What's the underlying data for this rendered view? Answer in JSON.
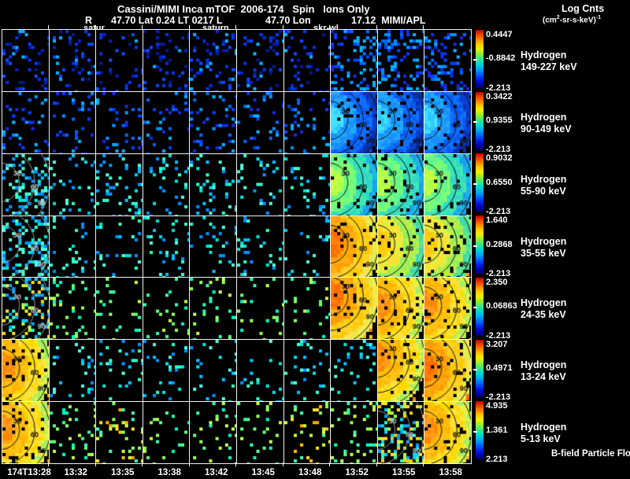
{
  "header": {
    "title": "Cassini/MIMI Inca mTOF  2006-174   Spin   Ions Only",
    "info_r": "R",
    "info_mid": "47.70 Lat 0.24 LT 0217 L",
    "info_lon": "47.70 Lon",
    "info_right": "17.12  MIMI/APL",
    "legend_line1": "Log Cnts",
    "units_parts": [
      "(cm",
      "2",
      "-sr-s-keV)",
      "-1"
    ],
    "markers": [
      "satur",
      "saturn",
      "skr-wl"
    ]
  },
  "rows": [
    {
      "species": "Hydrogen",
      "energy": "149-227 keV",
      "cbar_top": "0.4447",
      "cbar_mid": "-0.8842",
      "cbar_bot": "-2.213"
    },
    {
      "species": "Hydrogen",
      "energy": "90-149 keV",
      "cbar_top": "0.3422",
      "cbar_mid": "0.9355",
      "cbar_bot": "-2.213"
    },
    {
      "species": "Hydrogen",
      "energy": "55-90 keV",
      "cbar_top": "0.9032",
      "cbar_mid": "0.6550",
      "cbar_bot": "-2.213"
    },
    {
      "species": "Hydrogen",
      "energy": "35-55 keV",
      "cbar_top": "1.640",
      "cbar_mid": "0.2868",
      "cbar_bot": "-2.213"
    },
    {
      "species": "Hydrogen",
      "energy": "24-35 keV",
      "cbar_top": "2.350",
      "cbar_mid": "0.06863",
      "cbar_bot": "-2.213"
    },
    {
      "species": "Hydrogen",
      "energy": "13-24 keV",
      "cbar_top": "3.207",
      "cbar_mid": "0.4971",
      "cbar_bot": "-2.213"
    },
    {
      "species": "Hydrogen",
      "energy": "5-13 keV",
      "cbar_top": "4.935",
      "cbar_mid": "1.361",
      "cbar_bot": "2.213"
    }
  ],
  "footer": {
    "bfield": "B-field Particle Flow"
  },
  "time_axis": [
    "174T13:28",
    "13:32",
    "13:35",
    "13:38",
    "13:42",
    "13:45",
    "13:48",
    "13:52",
    "13:55",
    "13:58"
  ],
  "chart_data": {
    "type": "heatmap",
    "title": "Cassini/MIMI Inca mTOF 2006-174 Spin Ions Only",
    "units": "Log Cnts (cm2-sr-s-keV)-1",
    "x_ticks": [
      "174T13:28",
      "13:32",
      "13:35",
      "13:38",
      "13:42",
      "13:45",
      "13:48",
      "13:52",
      "13:55",
      "13:58"
    ],
    "channels": [
      {
        "name": "Hydrogen 149-227 keV",
        "scale_ticks": [
          "0.4447",
          "-0.8842",
          "-2.213"
        ]
      },
      {
        "name": "Hydrogen 90-149 keV",
        "scale_ticks": [
          "0.3422",
          "0.9355",
          "-2.213"
        ]
      },
      {
        "name": "Hydrogen 55-90 keV",
        "scale_ticks": [
          "0.9032",
          "0.6550",
          "-2.213"
        ]
      },
      {
        "name": "Hydrogen 35-55 keV",
        "scale_ticks": [
          "1.640",
          "0.2868",
          "-2.213"
        ]
      },
      {
        "name": "Hydrogen 24-35 keV",
        "scale_ticks": [
          "2.350",
          "0.06863",
          "-2.213"
        ]
      },
      {
        "name": "Hydrogen 13-24 keV",
        "scale_ticks": [
          "3.207",
          "0.4971",
          "-2.213"
        ]
      },
      {
        "name": "Hydrogen 5-13 keV",
        "scale_ticks": [
          "4.935",
          "1.361",
          "2.213"
        ]
      }
    ],
    "contour_labels": [
      "30",
      "60",
      "90"
    ],
    "palettes": {
      "deepblue": [
        "#0020c0",
        "#0038f0",
        "#1048ff",
        "#001a88",
        "#0030e0",
        "#00b0ff"
      ],
      "blue": [
        "#0040ff",
        "#0066ff",
        "#0090ff",
        "#00b0ff",
        "#1828e0"
      ],
      "cyan": [
        "#00c0ff",
        "#00e0d8",
        "#30ffc8",
        "#0090ff",
        "#50ffe0"
      ],
      "green": [
        "#30ffa8",
        "#60ff78",
        "#90ff58",
        "#00ffc0",
        "#c0ff48"
      ],
      "warmgreen": [
        "#ffe020",
        "#ffc400",
        "#d0ff38",
        "#88ff68",
        "#40ffb8",
        "#ffa800"
      ],
      "warm": [
        "#ffd800",
        "#ffbc00",
        "#ff9c00",
        "#ffe84c",
        "#ff8400"
      ],
      "hot": [
        "#ff9000",
        "#ff7400",
        "#ffac00",
        "#ffc800",
        "#ff6000"
      ],
      "mix": [
        "#00d0ff",
        "#30ffc0",
        "#ffe030",
        "#b0ff40",
        "#00a0ff",
        "#ffd000"
      ]
    },
    "blob_rings": {
      "warm": [
        [
          "#ff8800",
          "#ff9d20"
        ],
        [
          "#ffb400",
          "#ffc416"
        ],
        [
          "#ffd800",
          "#ffe23c"
        ],
        [
          "#e8f040",
          "#a8f060"
        ]
      ],
      "hot": [
        [
          "#ff6c00",
          "#ff8200"
        ],
        [
          "#ff9c00",
          "#ffae10"
        ],
        [
          "#ffc800",
          "#ffd22a"
        ],
        [
          "#ffe44c",
          "#d8f050"
        ]
      ],
      "warmgreen": [
        [
          "#ffd000",
          "#ffc020"
        ],
        [
          "#ffe030",
          "#e0f040"
        ],
        [
          "#b8f048",
          "#90f060"
        ],
        [
          "#58e890",
          "#40d8b0"
        ]
      ],
      "greenish": [
        [
          "#c8ff40",
          "#a8ff50"
        ],
        [
          "#80ff70",
          "#60f890"
        ],
        [
          "#40e8b0",
          "#30d8c8"
        ],
        [
          "#20b8e0",
          "#18a0f0"
        ]
      ],
      "cool": [
        [
          "#40e0ff",
          "#30c8ff"
        ],
        [
          "#20a8ff",
          "#1890ff"
        ],
        [
          "#1070ff",
          "#0858f0"
        ],
        [
          "#0840d0",
          "#0830a8"
        ]
      ]
    },
    "panels": [
      [
        {
          "d": 0.16,
          "p": "deepblue"
        },
        {
          "d": 0.13,
          "p": "deepblue"
        },
        {
          "d": 0.13,
          "p": "deepblue"
        },
        {
          "d": 0.16,
          "p": "deepblue"
        },
        {
          "d": 0.2,
          "p": "deepblue"
        },
        {
          "d": 0.14,
          "p": "deepblue"
        },
        {
          "d": 0.11,
          "p": "deepblue"
        },
        {
          "d": 0.28,
          "p": "blue"
        },
        {
          "d": 0.3,
          "p": "blue"
        },
        {
          "d": 0.24,
          "p": "blue"
        }
      ],
      [
        {
          "d": 0.13,
          "p": "blue"
        },
        {
          "d": 0.09,
          "p": "blue"
        },
        {
          "d": 0.11,
          "p": "blue"
        },
        {
          "d": 0.11,
          "p": "blue"
        },
        {
          "d": 0.16,
          "p": "blue"
        },
        {
          "d": 0.11,
          "p": "blue"
        },
        {
          "d": 0.1,
          "p": "blue"
        },
        {
          "d": 0.6,
          "p": "blue",
          "b": "cool"
        },
        {
          "d": 0.65,
          "p": "cyan",
          "b": "cool"
        },
        {
          "d": 0.55,
          "p": "blue",
          "b": "cool"
        }
      ],
      [
        {
          "d": 0.22,
          "p": "cyan",
          "a": 1
        },
        {
          "d": 0.11,
          "p": "cyan"
        },
        {
          "d": 0.13,
          "p": "cyan"
        },
        {
          "d": 0.11,
          "p": "cyan"
        },
        {
          "d": 0.11,
          "p": "cyan"
        },
        {
          "d": 0.13,
          "p": "cyan"
        },
        {
          "d": 0.11,
          "p": "cyan"
        },
        {
          "d": 0.85,
          "p": "green",
          "b": "greenish"
        },
        {
          "d": 0.88,
          "p": "green",
          "b": "greenish"
        },
        {
          "d": 0.85,
          "p": "green",
          "b": "greenish"
        }
      ],
      [
        {
          "d": 0.3,
          "p": "cyan",
          "a": 1
        },
        {
          "d": 0.09,
          "p": "cyan"
        },
        {
          "d": 0.07,
          "p": "cyan"
        },
        {
          "d": 0.09,
          "p": "cyan"
        },
        {
          "d": 0.07,
          "p": "cyan"
        },
        {
          "d": 0.09,
          "p": "cyan"
        },
        {
          "d": 0.07,
          "p": "cyan"
        },
        {
          "d": 0.95,
          "p": "warm",
          "b": "hot"
        },
        {
          "d": 0.93,
          "p": "warmgreen",
          "b": "warmgreen"
        },
        {
          "d": 0.9,
          "p": "warmgreen",
          "b": "warmgreen"
        }
      ],
      [
        {
          "d": 0.28,
          "p": "mix",
          "a": 1
        },
        {
          "d": 0.09,
          "p": "green"
        },
        {
          "d": 0.09,
          "p": "green"
        },
        {
          "d": 0.07,
          "p": "green"
        },
        {
          "d": 0.09,
          "p": "green"
        },
        {
          "d": 0.07,
          "p": "green"
        },
        {
          "d": 0.09,
          "p": "green"
        },
        {
          "d": 0.95,
          "p": "hot",
          "b": "hot",
          "cy": 0.3
        },
        {
          "d": 0.92,
          "p": "warm",
          "b": "warm"
        },
        {
          "d": 0.9,
          "p": "warm",
          "b": "warm"
        }
      ],
      [
        {
          "d": 0.88,
          "p": "warm",
          "b": "warm"
        },
        {
          "d": 0.09,
          "p": "cyan"
        },
        {
          "d": 0.09,
          "p": "cyan"
        },
        {
          "d": 0.07,
          "p": "cyan"
        },
        {
          "d": 0.09,
          "p": "cyan"
        },
        {
          "d": 0.07,
          "p": "cyan"
        },
        {
          "d": 0.09,
          "p": "cyan"
        },
        {
          "d": 0.11,
          "p": "cyan"
        },
        {
          "d": 0.78,
          "p": "warm",
          "b": "warm",
          "cy": 0.3
        },
        {
          "d": 0.95,
          "p": "hot",
          "b": "hot"
        }
      ],
      [
        {
          "d": 0.9,
          "p": "warm",
          "b": "warm"
        },
        {
          "d": 0.11,
          "p": "green"
        },
        {
          "d": 0.13,
          "p": "warmgreen"
        },
        {
          "d": 0.09,
          "p": "green"
        },
        {
          "d": 0.11,
          "p": "green"
        },
        {
          "d": 0.09,
          "p": "green"
        },
        {
          "d": 0.11,
          "p": "warmgreen"
        },
        {
          "d": 0.13,
          "p": "green"
        },
        {
          "d": 0.38,
          "p": "mix",
          "a": 1
        },
        {
          "d": 0.95,
          "p": "warm",
          "b": "warm"
        }
      ]
    ]
  }
}
